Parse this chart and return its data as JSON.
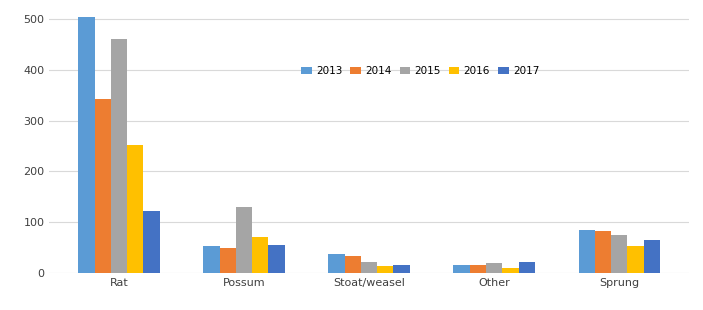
{
  "categories": [
    "Rat",
    "Possum",
    "Stoat/weasel",
    "Other",
    "Sprung"
  ],
  "years": [
    "2013",
    "2014",
    "2015",
    "2016",
    "2017"
  ],
  "values": {
    "2013": [
      505,
      52,
      37,
      15,
      85
    ],
    "2014": [
      343,
      48,
      33,
      16,
      82
    ],
    "2015": [
      462,
      130,
      22,
      20,
      75
    ],
    "2016": [
      252,
      70,
      13,
      10,
      52
    ],
    "2017": [
      122,
      55,
      16,
      22,
      65
    ]
  },
  "colors": {
    "2013": "#5B9BD5",
    "2014": "#ED7D31",
    "2015": "#A5A5A5",
    "2016": "#FFC000",
    "2017": "#4472C4"
  },
  "ylim": [
    0,
    520
  ],
  "yticks": [
    0,
    100,
    200,
    300,
    400,
    500
  ],
  "background_color": "#ffffff",
  "grid_color": "#d9d9d9",
  "bar_width": 0.13,
  "figsize": [
    7.03,
    3.1
  ],
  "dpi": 100
}
